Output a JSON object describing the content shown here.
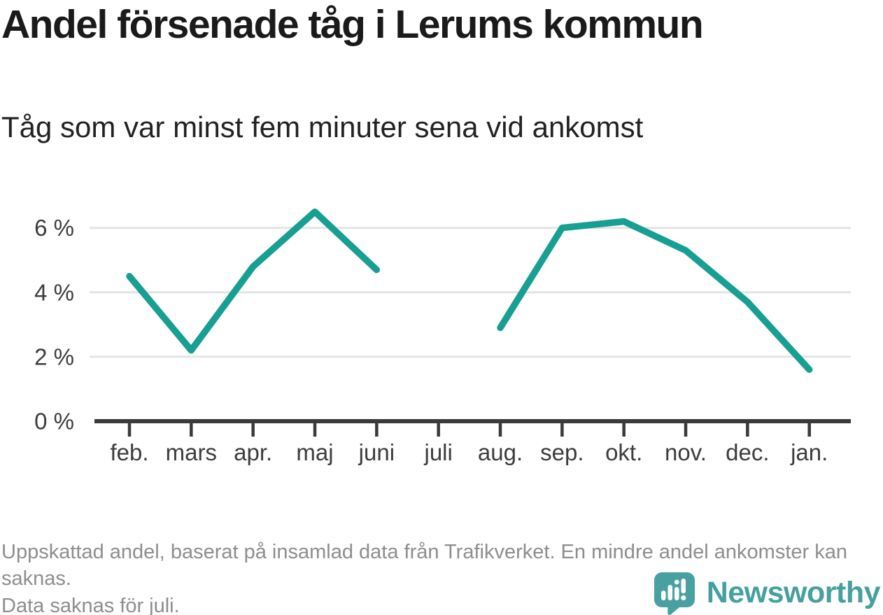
{
  "header": {
    "title": "Andel försenade tåg i Lerums kommun",
    "subtitle": "Tåg som var minst fem minuter sena vid ankomst"
  },
  "footer": {
    "note1": "Uppskattad andel, baserat på insamlad data från Trafikverket. En mindre andel ankomster kan saknas.",
    "note2": "Data saknas för juli."
  },
  "branding": {
    "logo_text": "Newsworthy",
    "logo_color": "#46a0a0",
    "logo_icon": "speech-bubble-bar-chart-exclamation"
  },
  "chart_data": {
    "type": "line",
    "title": "Andel försenade tåg i Lerums kommun",
    "subtitle": "Tåg som var minst fem minuter sena vid ankomst",
    "categories": [
      "feb.",
      "mars",
      "apr.",
      "maj",
      "juni",
      "juli",
      "aug.",
      "sep.",
      "okt.",
      "nov.",
      "dec.",
      "jan."
    ],
    "series": [
      {
        "name": "Andel försenade tåg (%)",
        "values": [
          4.5,
          2.2,
          4.8,
          6.5,
          4.7,
          null,
          2.9,
          6.0,
          6.2,
          5.3,
          3.7,
          1.6
        ]
      }
    ],
    "missing_data_note": "Data saknas för juli.",
    "xlabel": "",
    "ylabel": "",
    "yticks": [
      0,
      2,
      4,
      6
    ],
    "ytick_labels": [
      "0 %",
      "2 %",
      "4 %",
      "6 %"
    ],
    "ylim": [
      0,
      7.2
    ],
    "grid": true,
    "legend": "none",
    "line_color": "#17a092",
    "grid_color": "#e4e4e4",
    "axis_color": "#3a3a3a",
    "tick_label_color": "#3d3d3d"
  }
}
